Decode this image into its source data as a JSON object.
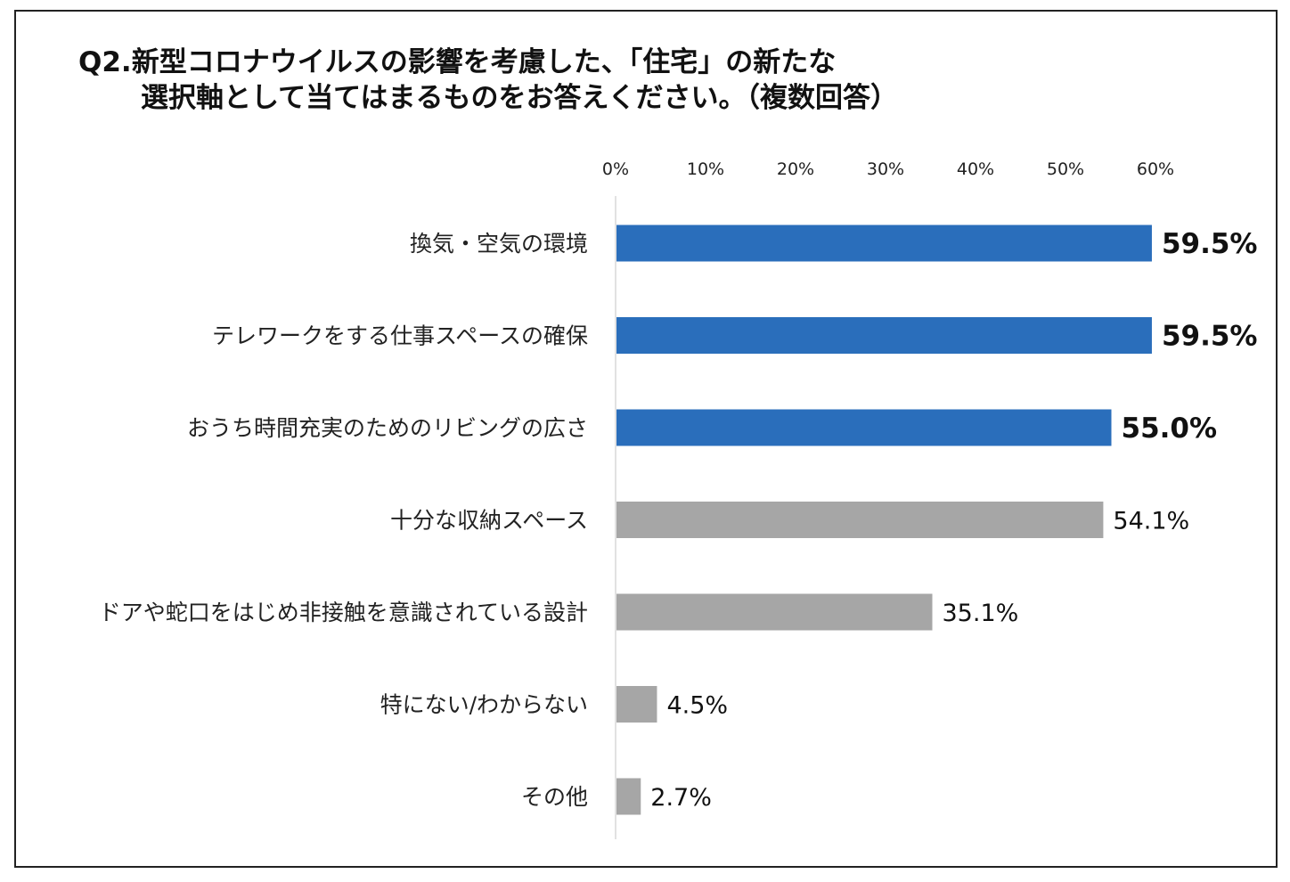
{
  "chart_data": {
    "type": "bar",
    "orientation": "horizontal",
    "title_lines": [
      "Q2.新型コロナウイルスの影響を考慮した、「住宅」の新たな",
      "選択軸として当てはまるものをお答えください。（複数回答）"
    ],
    "categories": [
      "換気・空気の環境",
      "テレワークをする仕事スペースの確保",
      "おうち時間充実のためのリビングの広さ",
      "十分な収納スペース",
      "ドアや蛇口をはじめ非接触を意識されている設計",
      "特にない/わからない",
      "その他"
    ],
    "values": [
      59.5,
      59.5,
      55.0,
      54.1,
      35.1,
      4.5,
      2.7
    ],
    "value_labels": [
      "59.5%",
      "59.5%",
      "55.0%",
      "54.1%",
      "35.1%",
      "4.5%",
      "2.7%"
    ],
    "highlighted": [
      true,
      true,
      true,
      false,
      false,
      false,
      false
    ],
    "x_ticks": [
      0,
      10,
      20,
      30,
      40,
      50,
      60
    ],
    "x_tick_labels": [
      "0%",
      "10%",
      "20%",
      "30%",
      "40%",
      "50%",
      "60%"
    ],
    "xlim": [
      0,
      60
    ],
    "x_axis_position": "top",
    "grid": false,
    "legend": "none",
    "colors": {
      "highlight": "#2a6ebb",
      "normal": "#a6a6a6",
      "axis": "#d9d9d9",
      "frame": "#222222"
    }
  }
}
